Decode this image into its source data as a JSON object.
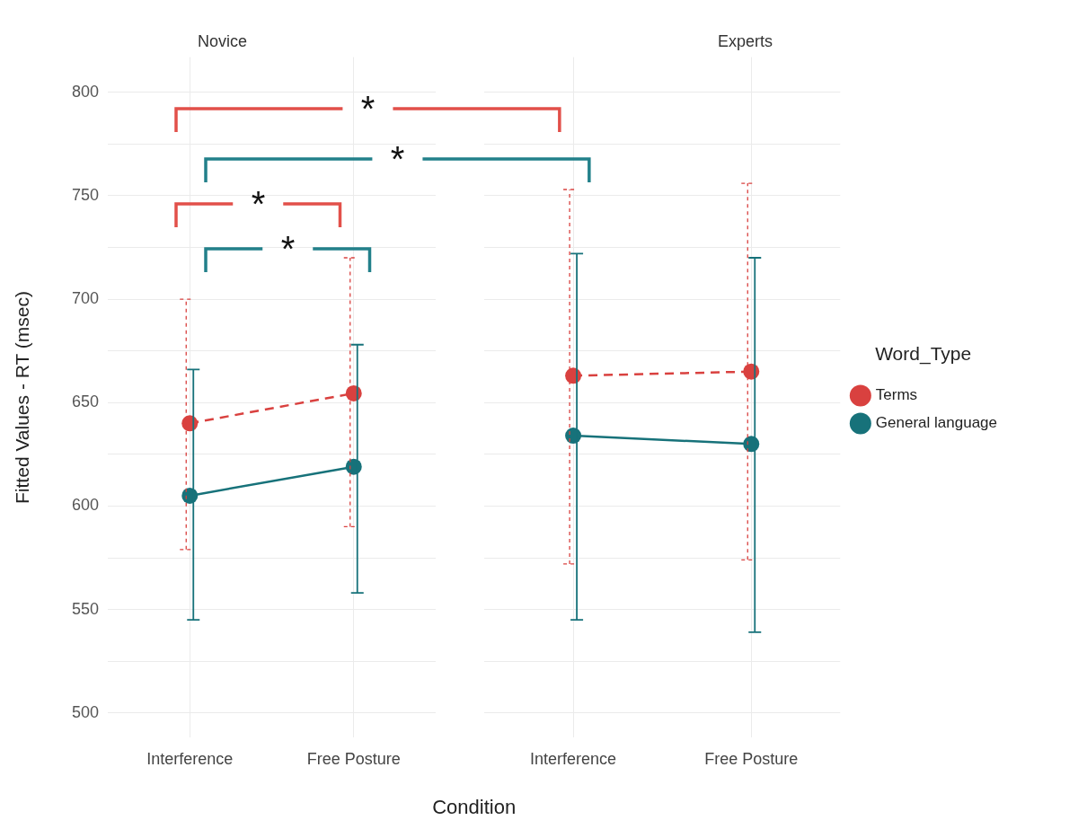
{
  "chart_data": [
    {
      "type": "line",
      "title": "Novice",
      "xlabel": "Condition",
      "ylabel": "Fitted Values - RT (msec)",
      "categories": [
        "Interference",
        "Free Posture"
      ],
      "ylim": [
        488,
        817
      ],
      "yticks": [
        500,
        {
          "value": 525,
          "label": null
        },
        550,
        {
          "value": 575,
          "label": null
        },
        600,
        {
          "value": 625,
          "label": null
        },
        650,
        {
          "value": 675,
          "label": null
        },
        700,
        {
          "value": 725,
          "label": null
        },
        750,
        {
          "value": 775,
          "label": null
        },
        800
      ],
      "grid": true,
      "marker": "circle",
      "annotations": [
        "*",
        "*",
        "*",
        "*"
      ],
      "series": [
        {
          "color": "#d9413f",
          "line_style": "dashed",
          "values": [
            640,
            654.5
          ],
          "errors": [
            [
              579,
              700
            ],
            [
              590,
              720
            ]
          ]
        },
        {
          "color": "#17727a",
          "line_style": "solid",
          "values": [
            605,
            619
          ],
          "errors": [
            [
              545,
              666
            ],
            [
              558,
              678
            ]
          ]
        }
      ]
    },
    {
      "type": "line",
      "title": "Experts",
      "categories": [
        "Interference",
        "Free Posture"
      ],
      "ylim": [
        488,
        817
      ],
      "yticks": [
        500,
        {
          "value": 525,
          "label": null
        },
        550,
        {
          "value": 575,
          "label": null
        },
        600,
        {
          "value": 625,
          "label": null
        },
        650,
        {
          "value": 675,
          "label": null
        },
        700,
        {
          "value": 725,
          "label": null
        },
        750,
        {
          "value": 775,
          "label": null
        },
        800
      ],
      "tick_labels": "x",
      "grid": true,
      "marker": "circle",
      "legend": "right",
      "legend_title": "Word_Type",
      "series": [
        {
          "name": "Terms",
          "color": "#d9413f",
          "line_style": "dashed",
          "values": [
            663,
            665
          ],
          "errors": [
            [
              572,
              753
            ],
            [
              574,
              756
            ]
          ]
        },
        {
          "name": "General language",
          "color": "#17727a",
          "line_style": "solid",
          "values": [
            634,
            630
          ],
          "errors": [
            [
              545,
              722
            ],
            [
              539,
              720
            ]
          ]
        }
      ]
    }
  ]
}
